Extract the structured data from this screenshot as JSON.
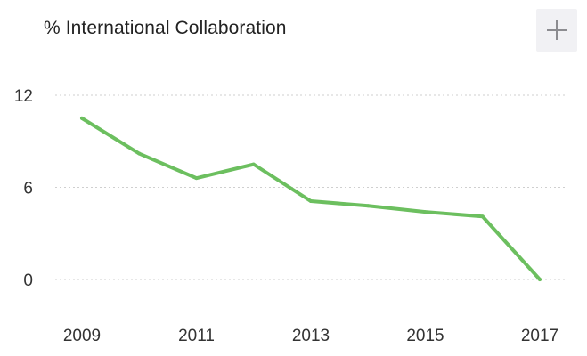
{
  "header": {
    "title": "% International Collaboration",
    "add_icon": "plus-icon"
  },
  "chart_data": {
    "type": "line",
    "title": "% International Collaboration",
    "xlabel": "",
    "ylabel": "",
    "x": [
      2009,
      2010,
      2011,
      2012,
      2013,
      2014,
      2015,
      2016,
      2017
    ],
    "series": [
      {
        "values": [
          10.5,
          8.2,
          6.6,
          7.5,
          5.1,
          4.8,
          4.4,
          4.1,
          0.0
        ],
        "color": "#6cbf5f"
      }
    ],
    "xticks": [
      "2009",
      "2011",
      "2013",
      "2015",
      "2017"
    ],
    "yticks": [
      "0",
      "6",
      "12"
    ],
    "xlim": [
      2009,
      2017
    ],
    "ylim": [
      0,
      12
    ],
    "grid": "horizontal-dotted",
    "legend": "none"
  }
}
